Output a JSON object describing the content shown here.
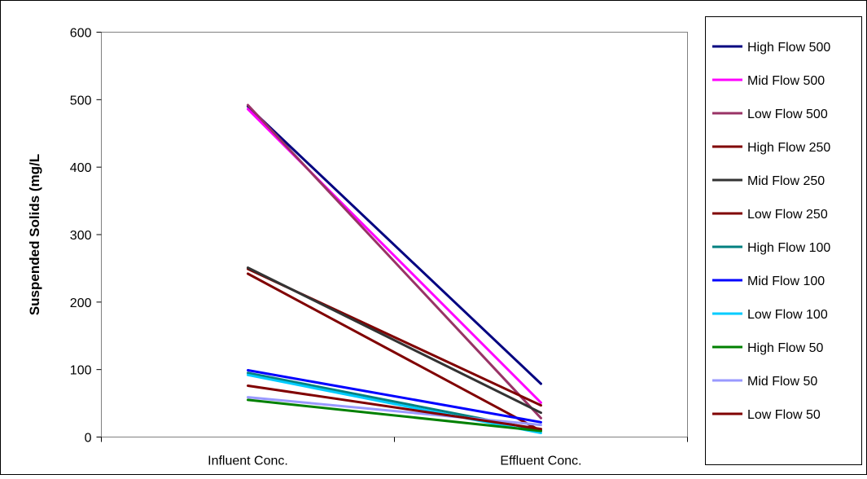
{
  "chart_data": {
    "type": "line",
    "title": "",
    "xlabel": "",
    "ylabel": "Suspended Solids (mg/L",
    "categories": [
      "Influent Conc.",
      "Effluent Conc."
    ],
    "ylim": [
      0,
      600
    ],
    "yticks": [
      0,
      100,
      200,
      300,
      400,
      500,
      600
    ],
    "grid": false,
    "legend": "right",
    "series": [
      {
        "name": "High Flow 500",
        "color": "#000080",
        "values": [
          490,
          79
        ]
      },
      {
        "name": "Mid Flow 500",
        "color": "#ff00ff",
        "values": [
          486,
          51
        ]
      },
      {
        "name": "Low Flow 500",
        "color": "#993366",
        "values": [
          492,
          28
        ]
      },
      {
        "name": "High Flow 250",
        "color": "#800000",
        "values": [
          249,
          47
        ]
      },
      {
        "name": "Mid Flow 250",
        "color": "#333333",
        "values": [
          251,
          36
        ]
      },
      {
        "name": "Low Flow 250",
        "color": "#800000",
        "values": [
          242,
          9
        ]
      },
      {
        "name": "High Flow 100",
        "color": "#008080",
        "values": [
          95,
          10
        ]
      },
      {
        "name": "Mid Flow 100",
        "color": "#0000ff",
        "values": [
          99,
          22
        ]
      },
      {
        "name": "Low Flow 100",
        "color": "#00ccff",
        "values": [
          92,
          6
        ]
      },
      {
        "name": "High Flow 50",
        "color": "#008000",
        "values": [
          55,
          9
        ]
      },
      {
        "name": "Mid Flow 50",
        "color": "#9999ff",
        "values": [
          59,
          18
        ]
      },
      {
        "name": "Low Flow 50",
        "color": "#800000",
        "values": [
          76,
          12
        ]
      }
    ]
  }
}
